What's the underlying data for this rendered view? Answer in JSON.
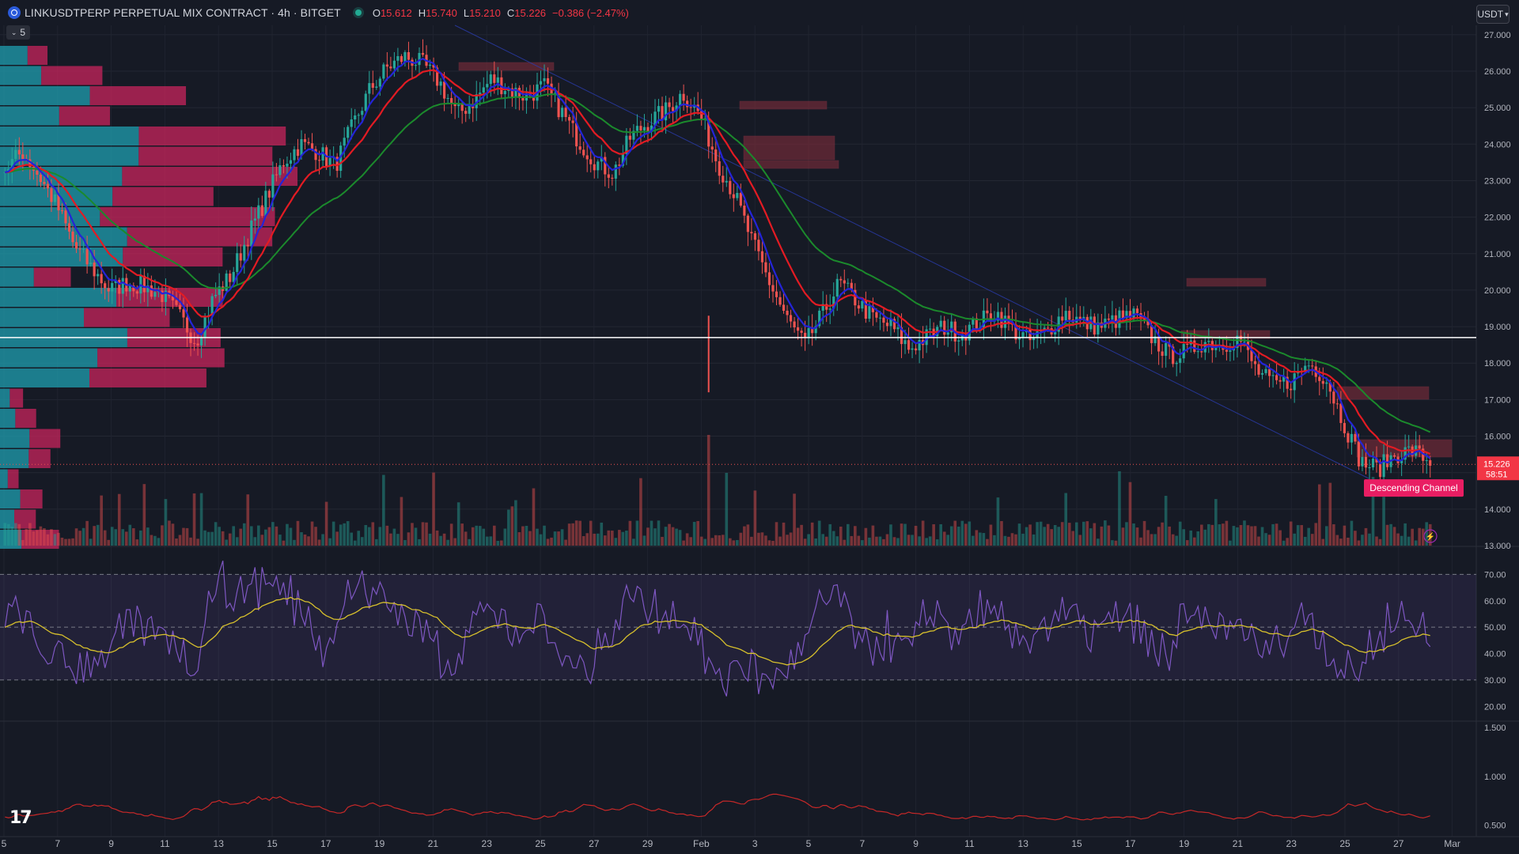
{
  "header": {
    "symbol_title": "LINKUSDTPERP PERPETUAL MIX CONTRACT · 4h · BITGET",
    "ohlc": [
      {
        "k": "O",
        "v": "15.612"
      },
      {
        "k": "H",
        "v": "15.740"
      },
      {
        "k": "L",
        "v": "15.210"
      },
      {
        "k": "C",
        "v": "15.226"
      },
      {
        "k": "",
        "v": "−0.386 (−2.47%)"
      }
    ],
    "quote_currency": "USDT"
  },
  "indicator_toggle": {
    "count": "5"
  },
  "price_axis": {
    "ticks": [
      "27.000",
      "26.000",
      "25.000",
      "24.000",
      "23.000",
      "22.000",
      "21.000",
      "20.000",
      "19.000",
      "18.000",
      "17.000",
      "16.000",
      "14.000",
      "13.000"
    ],
    "last_price": "15.226",
    "countdown": "58:51"
  },
  "rsi_axis": {
    "ticks": [
      "70.00",
      "60.00",
      "50.00",
      "40.00",
      "30.00",
      "20.00"
    ]
  },
  "vol_axis": {
    "ticks": [
      "1.500",
      "1.000",
      "0.500"
    ]
  },
  "time_axis": {
    "labels": [
      "5",
      "7",
      "9",
      "11",
      "13",
      "15",
      "17",
      "19",
      "21",
      "23",
      "25",
      "27",
      "29",
      "Feb",
      "3",
      "5",
      "7",
      "9",
      "11",
      "13",
      "15",
      "17",
      "19",
      "21",
      "23",
      "25",
      "27",
      "Mar"
    ]
  },
  "annotation": {
    "descending_channel": "Descending Channel"
  },
  "colors": {
    "up": "#26a69a",
    "down": "#ef5350",
    "ema_fast": "#2424d8",
    "ema_mid": "#e31b23",
    "ema_slow": "#1b8a2c",
    "rsi": "#7e57c2",
    "rsi_ma": "#d7c02c"
  },
  "chart_data": {
    "type": "candlestick",
    "symbol": "LINKUSDTPERP",
    "timeframe": "4h",
    "price_range": [
      13.0,
      27.3
    ],
    "price_path": [
      23.3,
      23.8,
      23.1,
      22.3,
      21.2,
      20.6,
      20.0,
      20.2,
      20.1,
      19.9,
      19.3,
      18.6,
      19.8,
      20.4,
      21.5,
      22.5,
      23.5,
      24.0,
      23.8,
      23.4,
      24.5,
      25.5,
      26.1,
      26.4,
      26.2,
      25.7,
      24.8,
      25.2,
      25.8,
      25.5,
      25.3,
      25.6,
      24.9,
      24.1,
      23.5,
      23.2,
      24.2,
      24.6,
      24.9,
      25.4,
      24.8,
      23.5,
      22.6,
      21.3,
      20.2,
      19.2,
      18.5,
      19.3,
      20.2,
      19.7,
      19.2,
      19.0,
      18.4,
      18.7,
      19.0,
      18.8,
      19.1,
      19.4,
      18.9,
      18.6,
      18.9,
      19.4,
      19.1,
      19.0,
      19.2,
      19.3,
      18.7,
      18.2,
      18.3,
      18.6,
      18.5,
      18.7,
      17.8,
      17.4,
      17.5,
      18.0,
      17.6,
      16.4,
      15.3,
      15.1,
      15.5,
      15.6,
      15.3
    ],
    "volume_profile_levels": 25,
    "horizontal_level": 18.7,
    "rsi_levels": [
      70,
      50,
      30
    ],
    "rsi_range": [
      15,
      80
    ],
    "volatility_range": [
      0.4,
      1.55
    ]
  }
}
